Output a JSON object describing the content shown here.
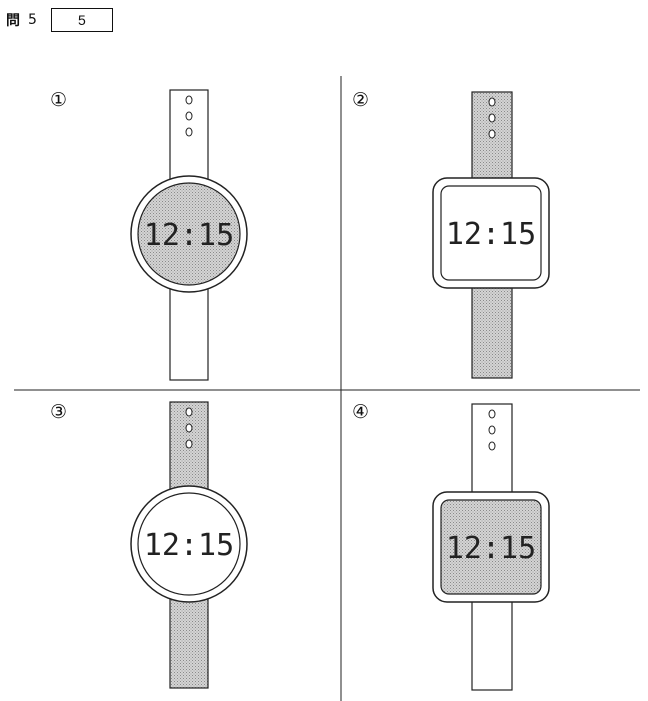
{
  "header": {
    "question_label": "問",
    "question_number": "5",
    "answer_box_number": "5"
  },
  "options": [
    {
      "label": "①",
      "time": "12:15"
    },
    {
      "label": "②",
      "time": "12:15"
    },
    {
      "label": "③",
      "time": "12:15"
    },
    {
      "label": "④",
      "time": "12:15"
    }
  ]
}
